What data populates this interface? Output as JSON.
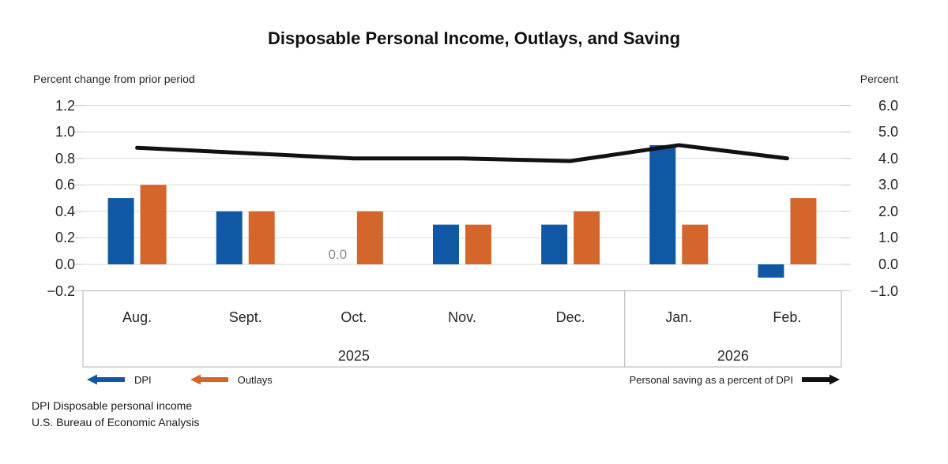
{
  "title": "Disposable Personal Income, Outlays, and Saving",
  "left_axis_caption": "Percent change from prior period",
  "right_axis_caption": "Percent",
  "legend": {
    "dpi_label": "DPI",
    "outlays_label": "Outlays",
    "saving_label": "Personal saving as a percent of DPI"
  },
  "footer": {
    "line1": "DPI Disposable personal income",
    "line2": "U.S. Bureau of Economic Analysis"
  },
  "colors": {
    "dpi": "#1158A4",
    "outlays": "#D4662B",
    "saving": "#111111",
    "grid": "#d9d9d9",
    "tick_stub": "#c6c6c6",
    "box_border": "#b3b3b3",
    "zero_label": "#8c8c8c"
  },
  "chart_data": {
    "type": "bar",
    "categories": [
      "Aug.",
      "Sept.",
      "Oct.",
      "Nov.",
      "Dec.",
      "Jan.",
      "Feb."
    ],
    "year_groups": [
      {
        "label": "2025",
        "span": [
          0,
          4
        ]
      },
      {
        "label": "2026",
        "span": [
          5,
          6
        ]
      }
    ],
    "series": [
      {
        "name": "DPI",
        "type": "bar",
        "axis": "left",
        "values": [
          0.5,
          0.4,
          0.0,
          0.3,
          0.3,
          0.9,
          -0.1
        ]
      },
      {
        "name": "Outlays",
        "type": "bar",
        "axis": "left",
        "values": [
          0.6,
          0.4,
          0.4,
          0.3,
          0.4,
          0.3,
          0.5
        ]
      },
      {
        "name": "Personal saving as a percent of DPI",
        "type": "line",
        "axis": "right",
        "values": [
          4.4,
          4.2,
          4.0,
          4.0,
          3.9,
          4.5,
          4.0
        ]
      }
    ],
    "left_axis": {
      "min": -0.2,
      "max": 1.2,
      "ticks": [
        "1.2",
        "1.0",
        "0.8",
        "0.6",
        "0.4",
        "0.2",
        "0.0",
        "−0.2"
      ]
    },
    "right_axis": {
      "min": -1.0,
      "max": 6.0,
      "ticks": [
        "6.0",
        "5.0",
        "4.0",
        "3.0",
        "2.0",
        "1.0",
        "0.0",
        "−1.0"
      ]
    },
    "zero_bar_label": "0.0",
    "grid": true,
    "legend_position": "bottom"
  }
}
